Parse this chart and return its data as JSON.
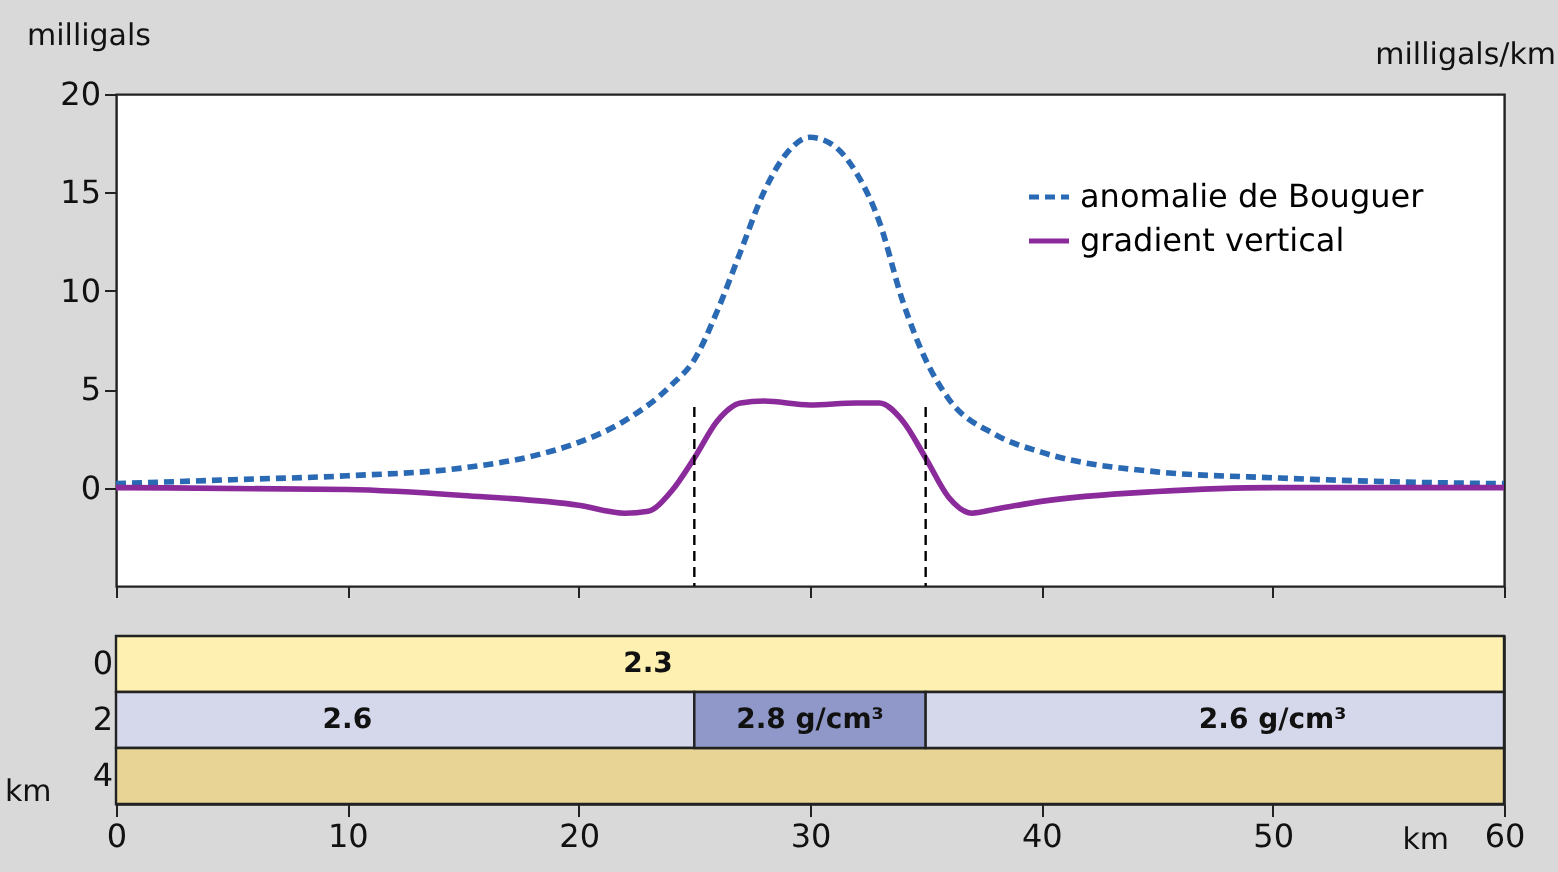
{
  "chart_data": [
    {
      "type": "line",
      "ylabel": "milligals",
      "y2label": "milligals/km",
      "xlim": [
        0,
        60
      ],
      "xticks": [
        0,
        10,
        20,
        30,
        40,
        50,
        60
      ],
      "ylim": [
        -5,
        20
      ],
      "yticks": [
        0,
        5,
        10,
        15,
        20
      ],
      "tick_labels": "y",
      "legend": "top right",
      "grid": false,
      "series": [
        {
          "name": "anomalie de Bouguer",
          "color": "#2a69b3",
          "line_style": "dashed",
          "x": [
            0,
            5,
            10,
            15,
            18,
            20,
            22,
            24,
            25,
            26,
            27,
            28,
            29,
            30,
            31,
            32,
            33,
            34,
            35,
            36,
            38,
            40,
            45,
            50,
            55,
            60
          ],
          "values": [
            0.2,
            0.4,
            0.6,
            1.0,
            1.6,
            2.3,
            3.4,
            5.2,
            6.5,
            9,
            12,
            15,
            17,
            17.8,
            17.4,
            16,
            13.5,
            9.5,
            6.5,
            4.5,
            2.7,
            1.8,
            0.8,
            0.5,
            0.3,
            0.2
          ]
        },
        {
          "name": "gradient vertical",
          "color": "#8b2a9a",
          "line_style": "solid",
          "x": [
            0,
            10,
            15,
            20,
            22,
            23,
            24,
            25,
            26,
            27,
            28,
            30,
            32,
            33,
            34,
            35,
            36,
            37,
            38,
            40,
            45,
            50,
            60
          ],
          "values": [
            0,
            -0.1,
            -0.4,
            -0.9,
            -1.3,
            -1.2,
            -0.2,
            1.5,
            3.4,
            4.3,
            4.4,
            4.2,
            4.3,
            4.3,
            3.4,
            1.5,
            -0.5,
            -1.3,
            -1.1,
            -0.7,
            -0.2,
            0,
            0
          ]
        }
      ],
      "ref_lines": [
        {
          "axis": "x",
          "value": 25,
          "label": null,
          "color": "#000000",
          "line_style": "dashed"
        },
        {
          "axis": "x",
          "value": 35,
          "label": null,
          "color": "#000000",
          "line_style": "dashed"
        }
      ]
    },
    {
      "type": "bar",
      "orientation": "horizontal",
      "stacked": true,
      "categories": [
        "0",
        "2",
        "4"
      ],
      "xlabel": "km",
      "ylabel": "km",
      "xlim": [
        0,
        60
      ],
      "xticks": [
        0,
        10,
        20,
        30,
        40,
        50,
        60
      ],
      "series": [
        {
          "colors": [
            "#fdf0b0",
            "#d5d8ea",
            "#e8d595"
          ],
          "values": [
            60,
            25,
            60
          ]
        },
        {
          "color": "#8f98c8",
          "values": [
            null,
            10,
            null
          ]
        },
        {
          "color": "#d5d8ea",
          "values": [
            null,
            25,
            null
          ]
        }
      ],
      "annotations": [
        {
          "text": "2.3",
          "x": 23,
          "y": "0"
        },
        {
          "text": "2.6",
          "x": 10,
          "y": "2"
        },
        {
          "text": "2.8 g/cm³",
          "x": 30,
          "y": "2"
        },
        {
          "text": "2.6 g/cm³",
          "x": 50,
          "y": "2"
        }
      ]
    }
  ]
}
